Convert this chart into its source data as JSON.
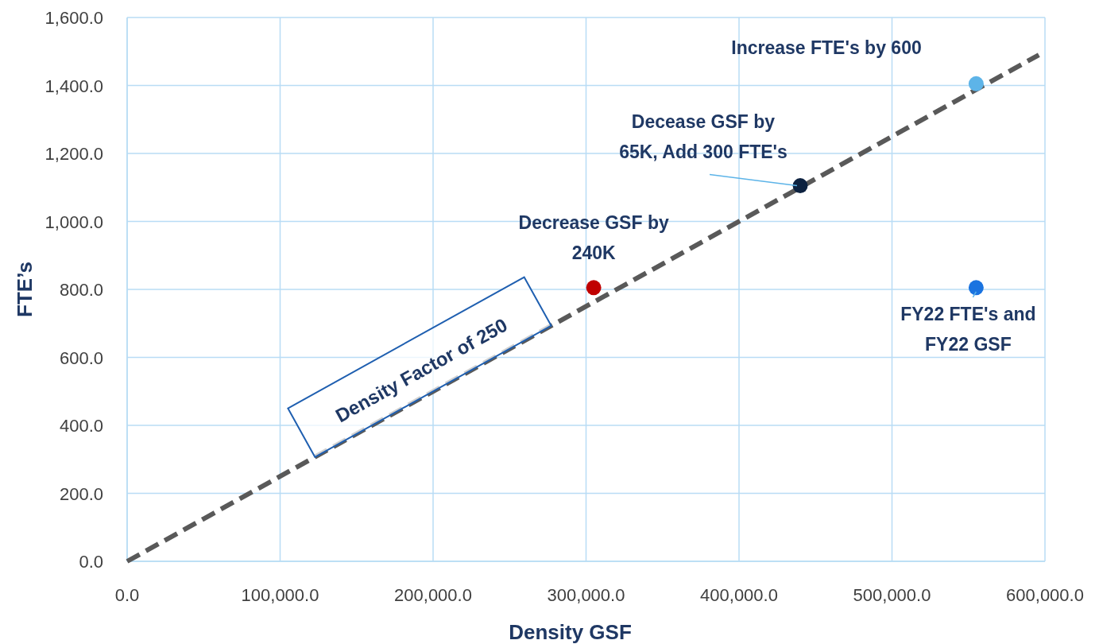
{
  "chart_data": {
    "type": "scatter",
    "xlabel": "Density GSF",
    "ylabel": "FTE’s",
    "xlim": [
      0,
      600000
    ],
    "ylim": [
      0,
      1600
    ],
    "xticks": [
      {
        "value": 0,
        "label": "0.0"
      },
      {
        "value": 100000,
        "label": "100,000.0"
      },
      {
        "value": 200000,
        "label": "200,000.0"
      },
      {
        "value": 300000,
        "label": "300,000.0"
      },
      {
        "value": 400000,
        "label": "400,000.0"
      },
      {
        "value": 500000,
        "label": "500,000.0"
      },
      {
        "value": 600000,
        "label": "600,000.0"
      }
    ],
    "yticks": [
      {
        "value": 0,
        "label": "0.0"
      },
      {
        "value": 200,
        "label": "200.0"
      },
      {
        "value": 400,
        "label": "400.0"
      },
      {
        "value": 600,
        "label": "600.0"
      },
      {
        "value": 800,
        "label": "800.0"
      },
      {
        "value": 1000,
        "label": "1,000.0"
      },
      {
        "value": 1200,
        "label": "1,200.0"
      },
      {
        "value": 1400,
        "label": "1,400.0"
      },
      {
        "value": 1600,
        "label": "1,600.0"
      }
    ],
    "grid": true,
    "marker": "circle",
    "series": [
      {
        "type": "line",
        "color": "#595959",
        "line_style": "dashed",
        "marker": "none",
        "x": [
          0,
          596000
        ],
        "values": [
          0,
          1490
        ]
      },
      {
        "x": [
          305000,
          440000,
          555000,
          555000
        ],
        "values": [
          805,
          1105,
          1405,
          805
        ],
        "colors": [
          "#c00000",
          "#0d2240",
          "#5db4e8",
          "#1a73e0"
        ]
      }
    ],
    "annotations": [
      "Increase FTE's by 600",
      {
        "text": "Decease GSF by\n65K, Add 300 FTE's",
        "x": 440000,
        "y": 1105
      },
      {
        "text": "Decrease GSF by\n240K",
        "x": 305000,
        "y": 805
      },
      {
        "text": "FY22 FTE's and\nFY22 GSF",
        "x": 555000,
        "y": 805
      },
      {
        "text": "Density Factor of 250",
        "x": 200000,
        "y": 500
      }
    ]
  }
}
